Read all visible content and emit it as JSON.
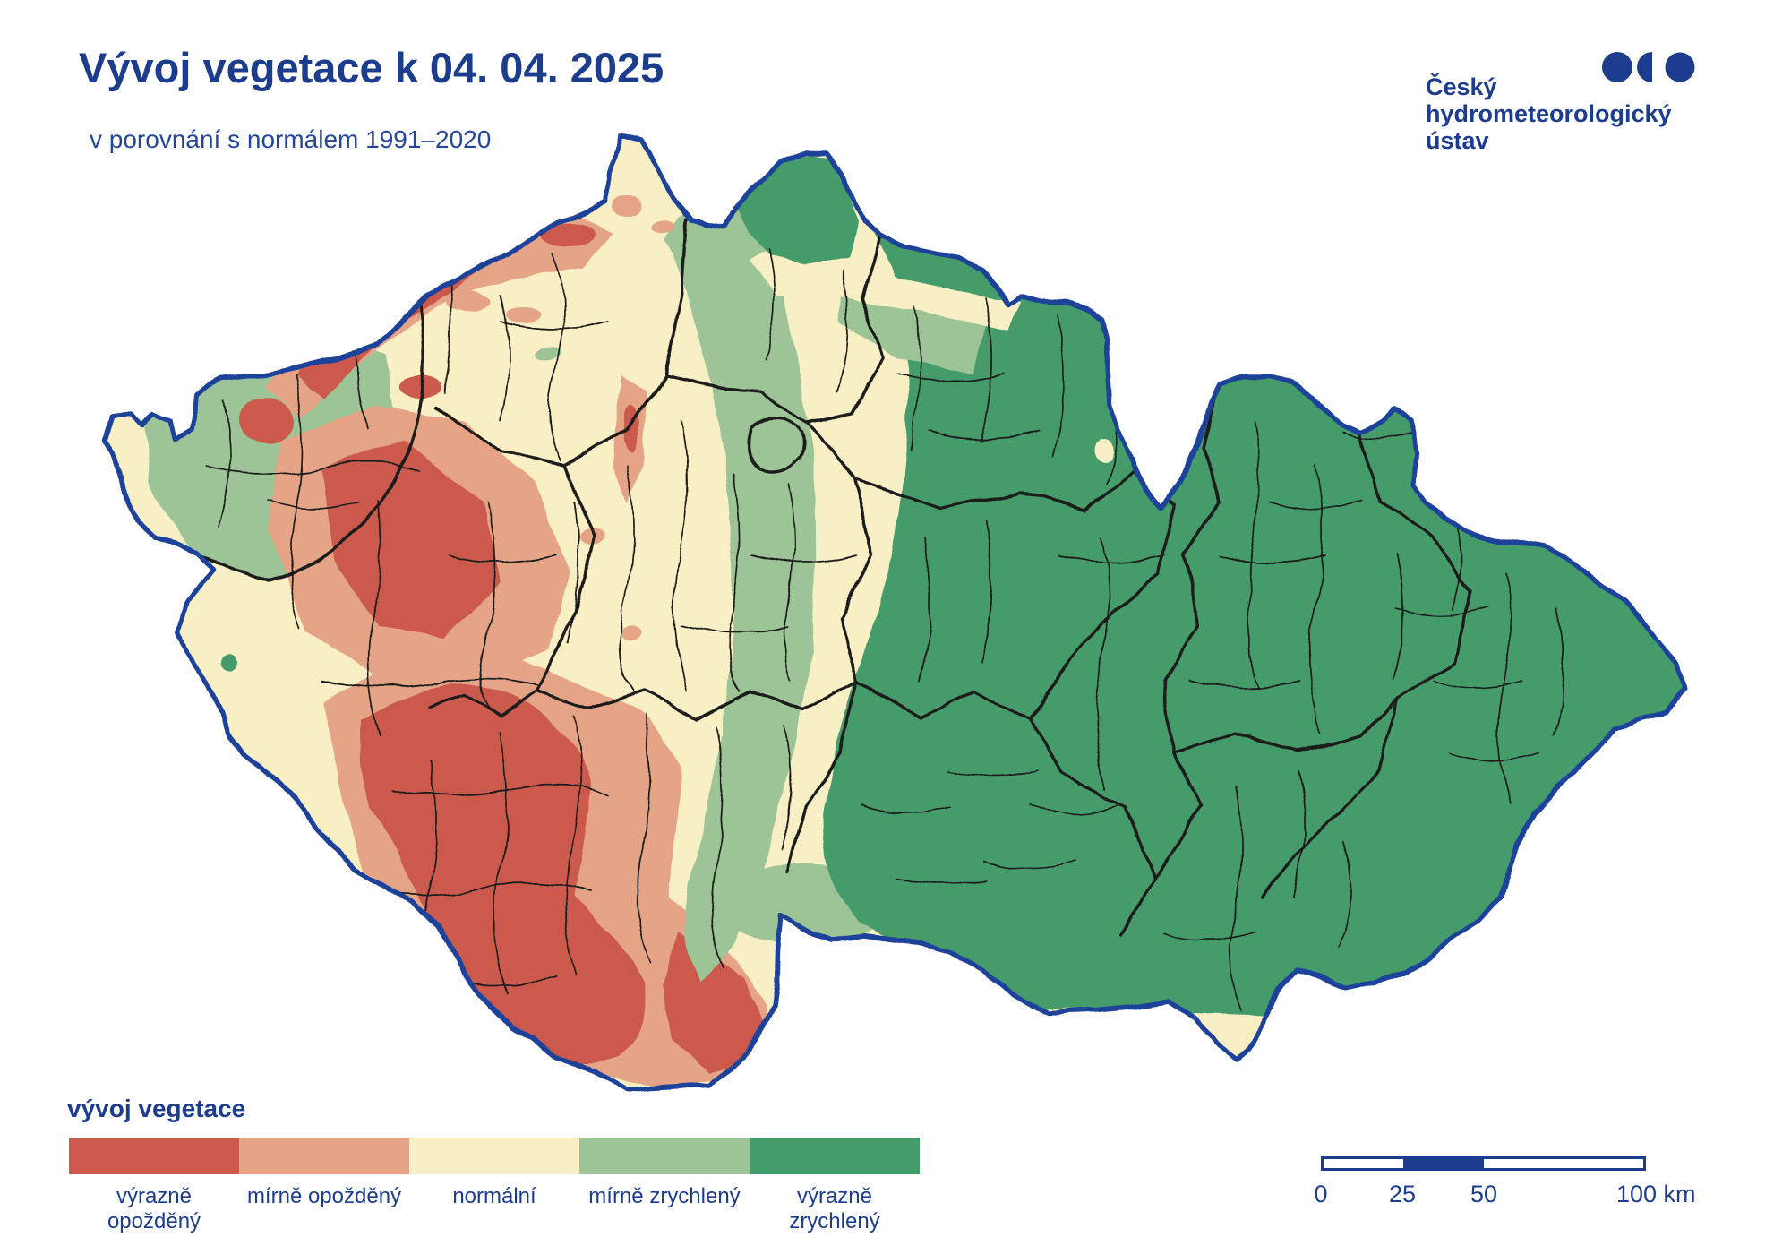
{
  "header": {
    "title": "Vývoj vegetace k 04. 04. 2025",
    "subtitle": "v porovnání s normálem 1991–2020"
  },
  "logo": {
    "org_lines": [
      "Český",
      "hydrometeorologický",
      "ústav"
    ],
    "color": "#1c3d8e"
  },
  "map": {
    "subject": "vegetation development across Czech Republic districts",
    "national_border_color": "#1e429a",
    "district_line_color": "#1a1a1a"
  },
  "legend": {
    "title": "vývoj vegetace",
    "classes": [
      {
        "label": "výrazně opožděný",
        "color": "#cb5a4d"
      },
      {
        "label": "mírně opožděný",
        "color": "#e6a487"
      },
      {
        "label": "normální",
        "color": "#f8efc4"
      },
      {
        "label": "mírně zrychlený",
        "color": "#9dc496"
      },
      {
        "label": "výrazně zrychlený",
        "color": "#459c6b"
      }
    ]
  },
  "scalebar": {
    "ticks": [
      "0",
      "25",
      "50"
    ],
    "end_label": "100 km"
  }
}
